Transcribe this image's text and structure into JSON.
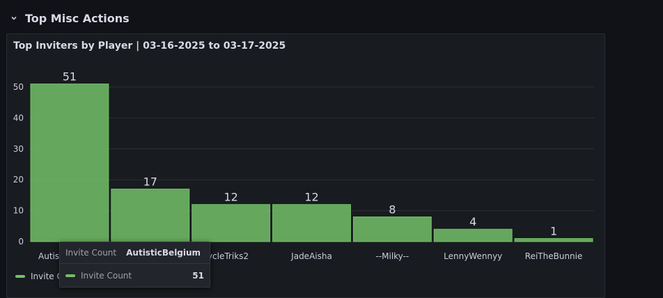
{
  "row": {
    "title": "Top Misc Actions",
    "icon": "chevron-down-icon"
  },
  "panel": {
    "title": "Top Inviters by Player | 03-16-2025 to 03-17-2025"
  },
  "colors": {
    "bar": "#73bf69",
    "background": "#111217",
    "panel": "#181b1f"
  },
  "chart_data": {
    "type": "bar",
    "title": "Top Inviters by Player | 03-16-2025 to 03-17-2025",
    "categories": [
      "AutisticBelgium",
      "",
      "UniCycleTriks2",
      "JadeAisha",
      "--Milky--",
      "LennyWennyy",
      "ReiTheBunnie"
    ],
    "visible_tick_labels": [
      "Autist",
      "",
      "iCycleTriks2",
      "JadeAisha",
      "--Milky--",
      "LennyWennyy",
      "ReiTheBunnie"
    ],
    "series": [
      {
        "name": "Invite Count",
        "values": [
          51,
          17,
          12,
          12,
          8,
          4,
          1
        ]
      }
    ],
    "yticks": [
      0,
      10,
      20,
      30,
      40,
      50
    ],
    "ylim": [
      0,
      51
    ],
    "grid": true,
    "legend": "bottom-left"
  },
  "legend": {
    "label": "Invite C"
  },
  "tooltip": {
    "header_label": "Invite Count",
    "header_value": "AutisticBelgium",
    "series_label": "Invite Count",
    "series_value": "51"
  }
}
